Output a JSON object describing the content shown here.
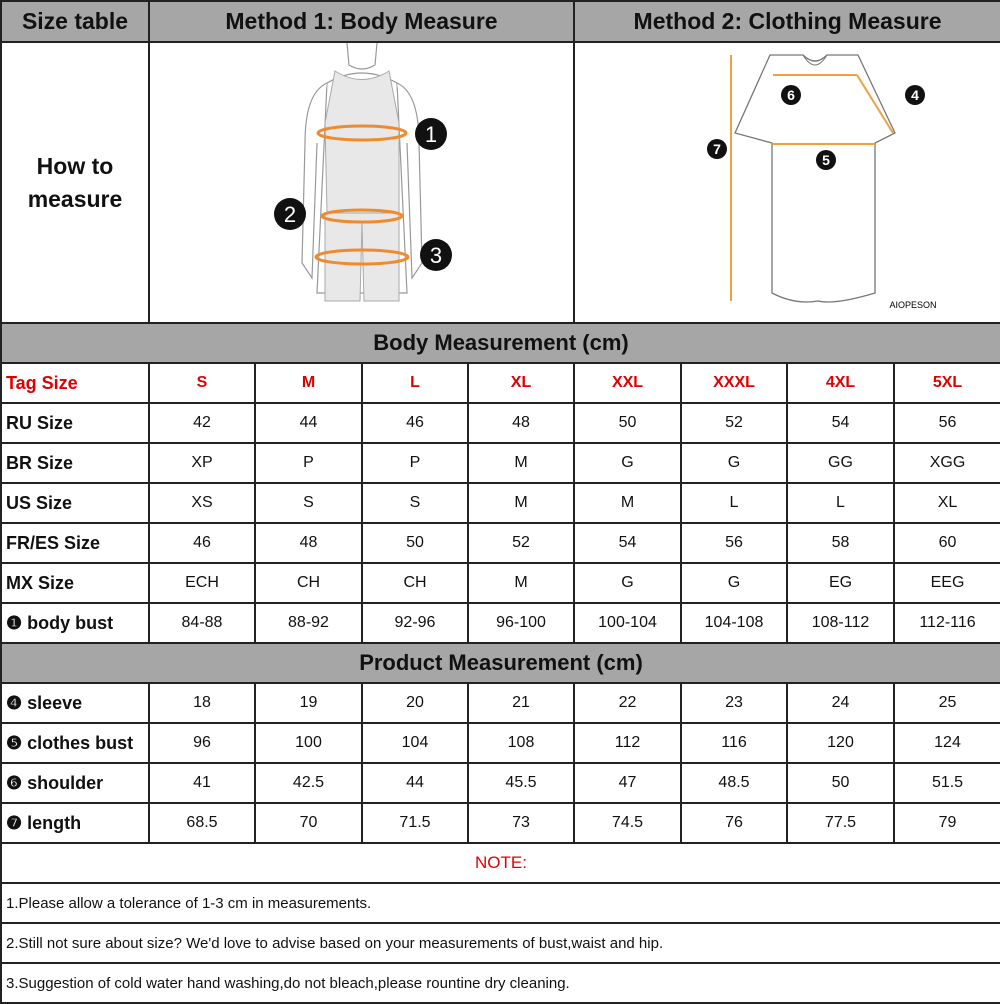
{
  "header": {
    "size_table": "Size table",
    "method1": "Method 1: Body  Measure",
    "method2": "Method 2: Clothing Measure"
  },
  "how_to_measure": [
    "How to",
    "measure"
  ],
  "body_diagram": {
    "markers": [
      "1",
      "2",
      "3"
    ],
    "accent": "#f08a2c"
  },
  "clothing_diagram": {
    "markers": [
      "4",
      "5",
      "6",
      "7"
    ],
    "brand": "AIOPESON",
    "accent": "#f0a040"
  },
  "body_section": "Body Measurement (cm)",
  "body_rows": [
    {
      "label": "Tag Size",
      "values": [
        "S",
        "M",
        "L",
        "XL",
        "XXL",
        "XXXL",
        "4XL",
        "5XL"
      ],
      "highlight": true
    },
    {
      "label": "RU Size",
      "values": [
        "42",
        "44",
        "46",
        "48",
        "50",
        "52",
        "54",
        "56"
      ]
    },
    {
      "label": "BR Size",
      "values": [
        "XP",
        "P",
        "P",
        "M",
        "G",
        "G",
        "GG",
        "XGG"
      ]
    },
    {
      "label": "US Size",
      "values": [
        "XS",
        "S",
        "S",
        "M",
        "M",
        "L",
        "L",
        "XL"
      ]
    },
    {
      "label": "FR/ES Size",
      "values": [
        "46",
        "48",
        "50",
        "52",
        "54",
        "56",
        "58",
        "60"
      ]
    },
    {
      "label": "MX Size",
      "values": [
        "ECH",
        "CH",
        "CH",
        "M",
        "G",
        "G",
        "EG",
        "EEG"
      ]
    },
    {
      "label": "❶ body bust",
      "values": [
        "84-88",
        "88-92",
        "92-96",
        "96-100",
        "100-104",
        "104-108",
        "108-112",
        "112-116"
      ]
    }
  ],
  "product_section": "Product Measurement (cm)",
  "product_rows": [
    {
      "label": "❹ sleeve",
      "values": [
        "18",
        "19",
        "20",
        "21",
        "22",
        "23",
        "24",
        "25"
      ]
    },
    {
      "label": "❺ clothes bust",
      "values": [
        "96",
        "100",
        "104",
        "108",
        "112",
        "116",
        "120",
        "124"
      ]
    },
    {
      "label": "❻ shoulder",
      "values": [
        "41",
        "42.5",
        "44",
        "45.5",
        "47",
        "48.5",
        "50",
        "51.5"
      ]
    },
    {
      "label": "❼ length",
      "values": [
        "68.5",
        "70",
        "71.5",
        "73",
        "74.5",
        "76",
        "77.5",
        "79"
      ]
    }
  ],
  "note_title": "NOTE:",
  "notes": [
    "1.Please allow a tolerance of 1-3 cm in measurements.",
    "2.Still not sure about size? We'd love to advise based on your measurements of bust,waist and hip.",
    "3.Suggestion of cold water hand washing,do not bleach,please rountine dry cleaning."
  ]
}
